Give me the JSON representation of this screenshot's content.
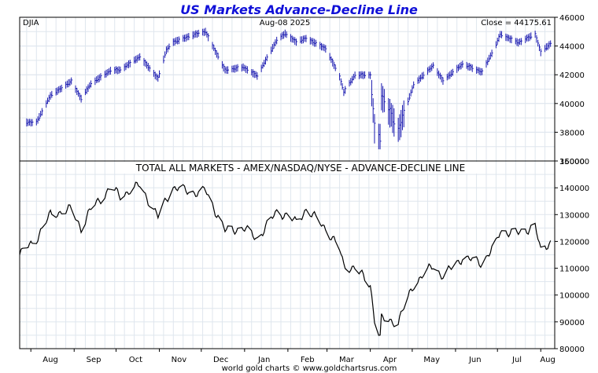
{
  "chart_data": [
    {
      "type": "ohlc",
      "title": "US Markets Advance-Decline Line",
      "symbol": "DJIA",
      "date": "Aug-08  2025",
      "close_label": "Close = 44175.61",
      "color": "#1a1ab0",
      "ylim": [
        36000,
        46000
      ],
      "yticks": [
        36000,
        38000,
        40000,
        42000,
        44000,
        46000
      ],
      "points": [
        [
          "2024-08-05",
          38700
        ],
        [
          "2024-08-15",
          40560
        ],
        [
          "2024-08-30",
          41560
        ],
        [
          "2024-09-06",
          40350
        ],
        [
          "2024-09-13",
          41390
        ],
        [
          "2024-09-27",
          42310
        ],
        [
          "2024-10-04",
          42350
        ],
        [
          "2024-10-18",
          43270
        ],
        [
          "2024-10-31",
          41760
        ],
        [
          "2024-11-06",
          43730
        ],
        [
          "2024-11-11",
          44290
        ],
        [
          "2024-11-29",
          44910
        ],
        [
          "2024-12-04",
          45010
        ],
        [
          "2024-12-18",
          42330
        ],
        [
          "2024-12-31",
          42540
        ],
        [
          "2025-01-10",
          41940
        ],
        [
          "2025-01-24",
          44420
        ],
        [
          "2025-01-30",
          44880
        ],
        [
          "2025-02-07",
          44300
        ],
        [
          "2025-02-14",
          44550
        ],
        [
          "2025-02-28",
          43840
        ],
        [
          "2025-03-10",
          41900
        ],
        [
          "2025-03-13",
          40810
        ],
        [
          "2025-03-21",
          41990
        ],
        [
          "2025-04-01",
          42000
        ],
        [
          "2025-04-04",
          38310
        ],
        [
          "2025-04-08",
          37650
        ],
        [
          "2025-04-09",
          40600
        ],
        [
          "2025-04-21",
          38170
        ],
        [
          "2025-05-02",
          41320
        ],
        [
          "2025-05-16",
          42650
        ],
        [
          "2025-05-23",
          41600
        ],
        [
          "2025-06-06",
          42760
        ],
        [
          "2025-06-20",
          42200
        ],
        [
          "2025-06-30",
          44100
        ],
        [
          "2025-07-03",
          44830
        ],
        [
          "2025-07-16",
          44250
        ],
        [
          "2025-07-28",
          44840
        ],
        [
          "2025-08-01",
          43590
        ],
        [
          "2025-08-08",
          44175
        ]
      ]
    },
    {
      "type": "line",
      "title": "TOTAL ALL MARKETS - AMEX/NASDAQ/NYSE - ADVANCE-DECLINE LINE",
      "color": "#000000",
      "ylim": [
        80000,
        150000
      ],
      "yticks": [
        80000,
        90000,
        100000,
        110000,
        120000,
        130000,
        140000,
        150000
      ],
      "points": [
        [
          "2024-07-24",
          115000
        ],
        [
          "2024-08-05",
          121000
        ],
        [
          "2024-08-15",
          130000
        ],
        [
          "2024-08-30",
          132000
        ],
        [
          "2024-09-06",
          125000
        ],
        [
          "2024-09-13",
          132000
        ],
        [
          "2024-09-27",
          140000
        ],
        [
          "2024-10-04",
          137000
        ],
        [
          "2024-10-18",
          141000
        ],
        [
          "2024-10-31",
          129000
        ],
        [
          "2024-11-06",
          136000
        ],
        [
          "2024-11-11",
          140000
        ],
        [
          "2024-11-29",
          138000
        ],
        [
          "2024-12-04",
          139000
        ],
        [
          "2024-12-18",
          124000
        ],
        [
          "2024-12-31",
          125000
        ],
        [
          "2025-01-10",
          121000
        ],
        [
          "2025-01-24",
          131000
        ],
        [
          "2025-01-30",
          130000
        ],
        [
          "2025-02-07",
          127000
        ],
        [
          "2025-02-14",
          132000
        ],
        [
          "2025-02-28",
          125000
        ],
        [
          "2025-03-10",
          117000
        ],
        [
          "2025-03-13",
          111000
        ],
        [
          "2025-03-21",
          110000
        ],
        [
          "2025-04-01",
          104000
        ],
        [
          "2025-04-04",
          91000
        ],
        [
          "2025-04-08",
          84000
        ],
        [
          "2025-04-09",
          91000
        ],
        [
          "2025-04-21",
          90000
        ],
        [
          "2025-05-02",
          104000
        ],
        [
          "2025-05-16",
          111000
        ],
        [
          "2025-05-23",
          107000
        ],
        [
          "2025-06-06",
          114000
        ],
        [
          "2025-06-20",
          112000
        ],
        [
          "2025-06-30",
          119000
        ],
        [
          "2025-07-03",
          124000
        ],
        [
          "2025-07-16",
          123000
        ],
        [
          "2025-07-28",
          126000
        ],
        [
          "2025-08-01",
          116000
        ],
        [
          "2025-08-08",
          120000
        ]
      ]
    }
  ],
  "x_axis": {
    "start": "2024-07-24",
    "end": "2025-08-11",
    "months": [
      {
        "label": "Aug",
        "date": "2024-08-01"
      },
      {
        "label": "Sep",
        "date": "2024-09-01"
      },
      {
        "label": "Oct",
        "date": "2024-10-01"
      },
      {
        "label": "Nov",
        "date": "2024-11-01"
      },
      {
        "label": "Dec",
        "date": "2024-12-01"
      },
      {
        "label": "Jan",
        "date": "2025-01-01"
      },
      {
        "label": "Feb",
        "date": "2025-02-01"
      },
      {
        "label": "Mar",
        "date": "2025-03-01"
      },
      {
        "label": "Apr",
        "date": "2025-04-01"
      },
      {
        "label": "May",
        "date": "2025-05-01"
      },
      {
        "label": "Jun",
        "date": "2025-06-01"
      },
      {
        "label": "Jul",
        "date": "2025-07-01"
      },
      {
        "label": "Aug",
        "date": "2025-08-01"
      }
    ]
  },
  "footer": "world gold charts © www.goldchartsrus.com"
}
